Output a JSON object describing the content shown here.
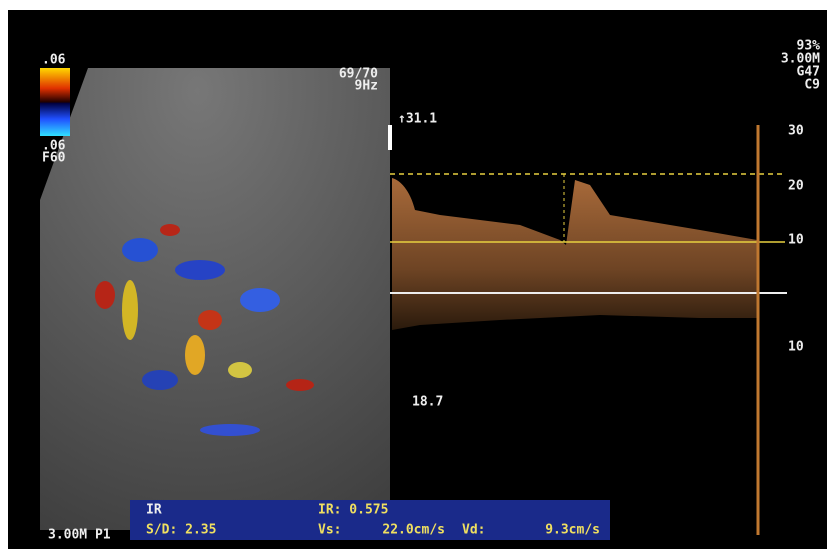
{
  "header": {
    "color_scale_top": ".06",
    "color_scale_bottom": ".06",
    "filter": "F60",
    "frame_rate": "69/70",
    "frequency": "9Hz",
    "settings": [
      "93%",
      "3.00M",
      "G47",
      "C9"
    ]
  },
  "spectral": {
    "scale_max": "↑31.1",
    "scale_labels": [
      "30",
      "20",
      "10",
      "10"
    ],
    "min_label": "18.7"
  },
  "footer": {
    "probe": "3.00M P1",
    "mode": "IR",
    "ir": "IR: 0.575",
    "sd": "S/D: 2.35",
    "vs_label": "Vs:",
    "vs": "22.0cm/s",
    "vd_label": "Vd:",
    "vd": "9.3cm/s"
  }
}
